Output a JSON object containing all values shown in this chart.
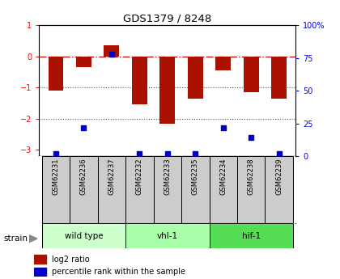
{
  "title": "GDS1379 / 8248",
  "samples": [
    "GSM62231",
    "GSM62236",
    "GSM62237",
    "GSM62232",
    "GSM62233",
    "GSM62235",
    "GSM62234",
    "GSM62238",
    "GSM62239"
  ],
  "log2_ratio": [
    -1.1,
    -0.35,
    0.35,
    -1.55,
    -2.15,
    -1.35,
    -0.45,
    -1.15,
    -1.35
  ],
  "percentile_rank": [
    2,
    22,
    78,
    2,
    2,
    2,
    22,
    14,
    2
  ],
  "groups": [
    {
      "label": "wild type",
      "start": 0,
      "end": 3,
      "color": "#ccffcc"
    },
    {
      "label": "vhl-1",
      "start": 3,
      "end": 6,
      "color": "#aaffaa"
    },
    {
      "label": "hif-1",
      "start": 6,
      "end": 9,
      "color": "#55dd55"
    }
  ],
  "ylim": [
    -3.2,
    1.0
  ],
  "yticks_left": [
    1,
    0,
    -1,
    -2,
    -3
  ],
  "yticks_right": [
    100,
    75,
    50,
    25,
    0
  ],
  "bar_color": "#aa1100",
  "dot_color": "#0000cc",
  "dashed_line_color": "#cc1111",
  "dotted_line_color": "#555555",
  "bg_color": "#ffffff",
  "sample_box_color": "#cccccc",
  "strain_label": "strain",
  "legend_bar_label": "log2 ratio",
  "legend_dot_label": "percentile rank within the sample"
}
